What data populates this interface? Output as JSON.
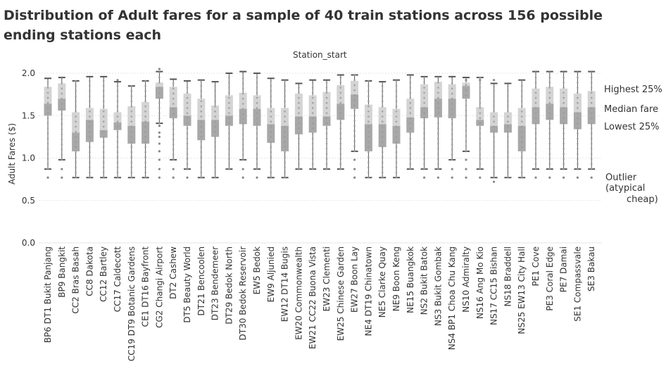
{
  "title": "Distribution of Adult fares for a sample of 40 train stations across 156 possible ending stations each",
  "colors": {
    "band_upper": "#d4d4d4",
    "band_lower": "#a8a8a8",
    "whisker": "#555555",
    "dots": "#9a9a9a",
    "grid": "#e6e6e6",
    "text": "#333333"
  },
  "annotations": {
    "highest": "Highest 25%",
    "median": "Median fare",
    "lowest": "Lowest 25%",
    "outlier_line1": "Outlier",
    "outlier_line2": "(atypical",
    "outlier_line3": "cheap)"
  },
  "chart_data": {
    "type": "box",
    "title": "Distribution of Adult fares for a sample of 40 train stations across 156 possible ending stations each",
    "column_header": "Station_start",
    "ylabel": "Adult Fares ($)",
    "xlabel": "",
    "ylim": [
      0,
      2.1
    ],
    "yticks": [
      0.0,
      0.5,
      1.0,
      1.5,
      2.0
    ],
    "ytick_labels": [
      "0.0",
      "0.5",
      "1.0",
      "1.5",
      "2.0"
    ],
    "grid": true,
    "categories": [
      "BP6 DT1 Bukit Panjang",
      "BP9 Bangkit",
      "CC2 Bras Basah",
      "CC8 Dakota",
      "CC12 Bartley",
      "CC17 Caldecott",
      "CC19 DT9 Botanic Gardens",
      "CE1 DT16 Bayfront",
      "CG2 Changi Airport",
      "DT2 Cashew",
      "DT5 Beauty World",
      "DT21 Bencoolen",
      "DT23 Bendemeer",
      "DT29 Bedok North",
      "DT30 Bedok Reservoir",
      "EW5 Bedok",
      "EW9 Aljunied",
      "EW12 DT14 Bugis",
      "EW20 Commonwealth",
      "EW21 CC22 Buona Vista",
      "EW23 Clementi",
      "EW25 Chinese Garden",
      "EW27 Boon Lay",
      "NE4 DT19 Chinatown",
      "NE5 Clarke Quay",
      "NE9 Boon Keng",
      "NE15 Buangkok",
      "NS2 Bukit Batok",
      "NS3 Bukit Gombak",
      "NS4 BP1 Choa Chu Kang",
      "NS10 Admiralty",
      "NS16 Ang Mo Kio",
      "NS17 CC15 Bishan",
      "NS18 Braddell",
      "NS25 EW13 City Hall",
      "PE1 Cove",
      "PE3 Coral Edge",
      "PE7 Damai",
      "SE1 Compassvale",
      "SE3 Bakau"
    ],
    "series": [
      {
        "values": [
          {
            "min": 0.87,
            "q1": 1.5,
            "median": 1.64,
            "q3": 1.84,
            "max": 1.94
          },
          {
            "min": 0.98,
            "q1": 1.56,
            "median": 1.7,
            "q3": 1.88,
            "max": 1.95
          },
          {
            "min": 0.77,
            "q1": 1.08,
            "median": 1.3,
            "q3": 1.54,
            "max": 1.91
          },
          {
            "min": 0.77,
            "q1": 1.19,
            "median": 1.45,
            "q3": 1.59,
            "max": 1.96
          },
          {
            "min": 0.77,
            "q1": 1.24,
            "median": 1.33,
            "q3": 1.58,
            "max": 1.96
          },
          {
            "min": 0.77,
            "q1": 1.33,
            "median": 1.42,
            "q3": 1.54,
            "max": 1.9
          },
          {
            "min": 0.77,
            "q1": 1.17,
            "median": 1.38,
            "q3": 1.61,
            "max": 1.85
          },
          {
            "min": 0.77,
            "q1": 1.17,
            "median": 1.43,
            "q3": 1.66,
            "max": 1.91
          },
          {
            "min": 1.41,
            "q1": 1.7,
            "median": 1.84,
            "q3": 1.89,
            "max": 2.02
          },
          {
            "min": 0.98,
            "q1": 1.47,
            "median": 1.6,
            "q3": 1.84,
            "max": 1.93
          },
          {
            "min": 0.87,
            "q1": 1.38,
            "median": 1.5,
            "q3": 1.76,
            "max": 1.91
          },
          {
            "min": 0.77,
            "q1": 1.21,
            "median": 1.45,
            "q3": 1.7,
            "max": 1.92
          },
          {
            "min": 0.77,
            "q1": 1.25,
            "median": 1.45,
            "q3": 1.62,
            "max": 1.9
          },
          {
            "min": 0.87,
            "q1": 1.38,
            "median": 1.5,
            "q3": 1.74,
            "max": 2.0
          },
          {
            "min": 0.98,
            "q1": 1.4,
            "median": 1.58,
            "q3": 1.77,
            "max": 2.02
          },
          {
            "min": 0.87,
            "q1": 1.38,
            "median": 1.58,
            "q3": 1.74,
            "max": 2.0
          },
          {
            "min": 0.77,
            "q1": 1.18,
            "median": 1.4,
            "q3": 1.59,
            "max": 1.94
          },
          {
            "min": 0.77,
            "q1": 1.08,
            "median": 1.38,
            "q3": 1.59,
            "max": 1.92
          },
          {
            "min": 0.87,
            "q1": 1.28,
            "median": 1.49,
            "q3": 1.76,
            "max": 1.88
          },
          {
            "min": 0.87,
            "q1": 1.3,
            "median": 1.49,
            "q3": 1.74,
            "max": 1.92
          },
          {
            "min": 0.87,
            "q1": 1.38,
            "median": 1.49,
            "q3": 1.78,
            "max": 1.92
          },
          {
            "min": 0.87,
            "q1": 1.45,
            "median": 1.64,
            "q3": 1.86,
            "max": 1.98
          },
          {
            "min": 1.08,
            "q1": 1.58,
            "median": 1.75,
            "q3": 1.91,
            "max": 1.98
          },
          {
            "min": 0.77,
            "q1": 1.08,
            "median": 1.4,
            "q3": 1.63,
            "max": 1.91
          },
          {
            "min": 0.77,
            "q1": 1.13,
            "median": 1.4,
            "q3": 1.6,
            "max": 1.9
          },
          {
            "min": 0.77,
            "q1": 1.17,
            "median": 1.38,
            "q3": 1.58,
            "max": 1.92
          },
          {
            "min": 0.87,
            "q1": 1.3,
            "median": 1.48,
            "q3": 1.7,
            "max": 1.98
          },
          {
            "min": 0.87,
            "q1": 1.47,
            "median": 1.6,
            "q3": 1.87,
            "max": 1.96
          },
          {
            "min": 0.87,
            "q1": 1.48,
            "median": 1.7,
            "q3": 1.9,
            "max": 1.96
          },
          {
            "min": 0.98,
            "q1": 1.47,
            "median": 1.7,
            "q3": 1.87,
            "max": 1.96
          },
          {
            "min": 1.08,
            "q1": 1.7,
            "median": 1.85,
            "q3": 1.89,
            "max": 1.95
          },
          {
            "min": 0.87,
            "q1": 1.38,
            "median": 1.45,
            "q3": 1.6,
            "max": 1.95
          },
          {
            "min": 0.77,
            "q1": 1.3,
            "median": 1.38,
            "q3": 1.54,
            "max": 1.88
          },
          {
            "min": 0.77,
            "q1": 1.3,
            "median": 1.4,
            "q3": 1.54,
            "max": 1.88
          },
          {
            "min": 0.77,
            "q1": 1.08,
            "median": 1.38,
            "q3": 1.59,
            "max": 1.92
          },
          {
            "min": 0.87,
            "q1": 1.4,
            "median": 1.6,
            "q3": 1.82,
            "max": 2.02
          },
          {
            "min": 0.87,
            "q1": 1.45,
            "median": 1.64,
            "q3": 1.84,
            "max": 2.02
          },
          {
            "min": 0.87,
            "q1": 1.4,
            "median": 1.6,
            "q3": 1.82,
            "max": 2.02
          },
          {
            "min": 0.87,
            "q1": 1.34,
            "median": 1.54,
            "q3": 1.76,
            "max": 2.02
          },
          {
            "min": 0.87,
            "q1": 1.4,
            "median": 1.6,
            "q3": 1.79,
            "max": 2.02
          }
        ]
      }
    ],
    "outliers": [
      {
        "category": "BP6 DT1 Bukit Panjang",
        "values": [
          0.77
        ]
      },
      {
        "category": "BP9 Bangkit",
        "values": [
          0.77,
          0.87
        ]
      },
      {
        "category": "CC17 Caldecott",
        "values": [
          1.92
        ]
      },
      {
        "category": "CG2 Changi Airport",
        "values": [
          0.77,
          0.87,
          0.98,
          1.08,
          1.17,
          1.25,
          1.3,
          1.38,
          2.05
        ]
      },
      {
        "category": "DT2 Cashew",
        "values": [
          0.77,
          0.87
        ]
      },
      {
        "category": "DT5 Beauty World",
        "values": [
          0.77
        ]
      },
      {
        "category": "DT30 Bedok Reservoir",
        "values": [
          0.77,
          0.87
        ]
      },
      {
        "category": "EW5 Bedok",
        "values": [
          0.77
        ]
      },
      {
        "category": "EW27 Boon Lay",
        "values": [
          0.77,
          0.87,
          0.98
        ]
      },
      {
        "category": "NS2 Bukit Batok",
        "values": [
          0.77
        ]
      },
      {
        "category": "NS3 Bukit Gombak",
        "values": [
          0.77
        ]
      },
      {
        "category": "NS4 BP1 Choa Chu Kang",
        "values": [
          0.77,
          0.87
        ]
      },
      {
        "category": "NS10 Admiralty",
        "values": [
          0.77,
          0.87,
          0.98,
          1.92
        ]
      },
      {
        "category": "NS16 Ang Mo Kio",
        "values": [
          0.77,
          1.92
        ]
      },
      {
        "category": "NS17 CC15 Bishan",
        "values": [
          0.72,
          1.92
        ]
      },
      {
        "category": "PE1 Cove",
        "values": [
          0.77
        ]
      },
      {
        "category": "PE3 Coral Edge",
        "values": [
          0.77
        ]
      },
      {
        "category": "PE7 Damai",
        "values": [
          0.77
        ]
      },
      {
        "category": "SE1 Compassvale",
        "values": [
          0.77
        ]
      },
      {
        "category": "SE3 Bakau",
        "values": [
          0.77
        ]
      }
    ]
  }
}
